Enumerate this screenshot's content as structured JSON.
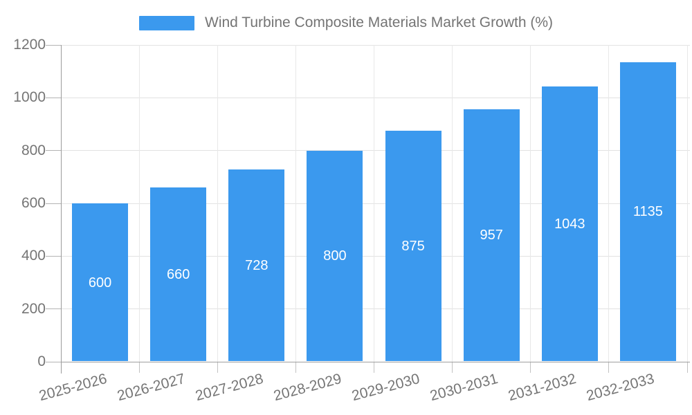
{
  "chart_data": {
    "type": "bar",
    "title": "Wind Turbine Composite Materials Market Growth (%)",
    "categories": [
      "2025-2026",
      "2026-2027",
      "2027-2028",
      "2028-2029",
      "2029-2030",
      "2030-2031",
      "2031-2032",
      "2032-2033"
    ],
    "values": [
      600,
      660,
      728,
      800,
      875,
      957,
      1043,
      1135
    ],
    "value_labels": [
      "600",
      "660",
      "728",
      "800",
      "875",
      "957",
      "1043",
      "1135"
    ],
    "xlabel": "",
    "ylabel": "",
    "ylim": [
      0,
      1200
    ],
    "yticks": [
      0,
      200,
      400,
      600,
      800,
      1000,
      1200
    ],
    "ytick_labels": [
      "0",
      "200",
      "400",
      "600",
      "800",
      "1000",
      "1200"
    ],
    "grid": true,
    "legend_position": "top",
    "colors": {
      "bar": "#3b99ee",
      "value_label": "#ffffff",
      "axis_text": "#757575",
      "gridline": "#e2e2e2",
      "axis_line": "#9e9e9e",
      "background": "#ffffff"
    }
  }
}
